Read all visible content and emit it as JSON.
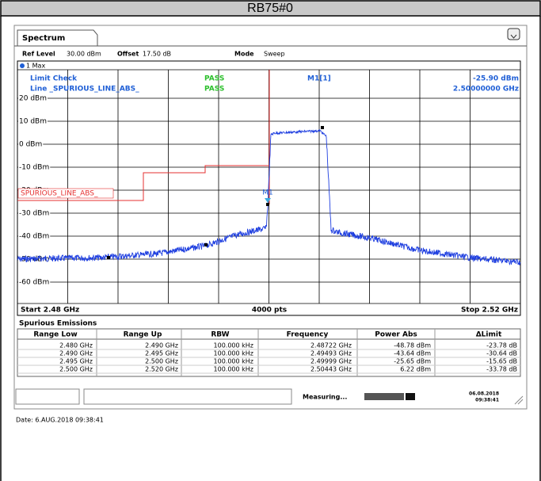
{
  "header": {
    "title": "RB75#0"
  },
  "tab": "Spectrum",
  "settings": {
    "ref_level_label": "Ref Level",
    "ref_level": "30.00 dBm",
    "offset_label": "Offset",
    "offset": "17.50 dB",
    "mode_label": "Mode",
    "mode": "Sweep"
  },
  "trace_label": "1 Max",
  "limit_check": {
    "label": "Limit Check",
    "status": "PASS",
    "line_label": "Line _SPURIOUS_LINE_ABS_",
    "line_status": "PASS"
  },
  "marker": {
    "name": "M1[1]",
    "level": "-25.90 dBm",
    "frequency": "2.50000000 GHz",
    "tag": "M1"
  },
  "limit_line_name": "SPURIOUS_LINE_ABS_",
  "y_axis_labels": [
    "20 dBm",
    "10 dBm",
    "0 dBm",
    "-10 dBm",
    "-20 dBm",
    "-30 dBm",
    "-40 dBm",
    "-50 dBm",
    "-60 dBm"
  ],
  "x_axis": {
    "start": "Start 2.48 GHz",
    "points": "4000 pts",
    "stop": "Stop 2.52 GHz"
  },
  "table": {
    "title": "Spurious Emissions",
    "columns": [
      "Range Low",
      "Range Up",
      "RBW",
      "Frequency",
      "Power Abs",
      "ΔLimit"
    ],
    "rows": [
      [
        "2.480 GHz",
        "2.490 GHz",
        "100.000 kHz",
        "2.48722 GHz",
        "-48.78 dBm",
        "-23.78 dB"
      ],
      [
        "2.490 GHz",
        "2.495 GHz",
        "100.000 kHz",
        "2.49493 GHz",
        "-43.64 dBm",
        "-30.64 dB"
      ],
      [
        "2.495 GHz",
        "2.500 GHz",
        "100.000 kHz",
        "2.49999 GHz",
        "-25.65 dBm",
        "-15.65 dB"
      ],
      [
        "2.500 GHz",
        "2.520 GHz",
        "100.000 kHz",
        "2.50443 GHz",
        "6.22 dBm",
        "-33.78 dB"
      ]
    ]
  },
  "status": {
    "measuring": "Measuring...",
    "date": "06.08.2018",
    "time": "09:38:41"
  },
  "footer": "Date: 6.AUG.2018  09:38:41"
}
